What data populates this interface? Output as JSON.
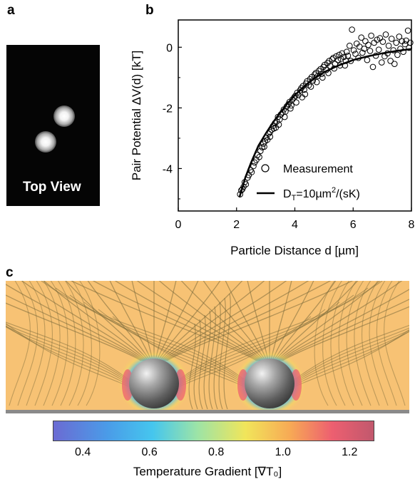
{
  "panels": {
    "a": {
      "letter": "a",
      "label": "Top View"
    },
    "b": {
      "letter": "b"
    },
    "c": {
      "letter": "c"
    }
  },
  "chart_data": {
    "type": "scatter",
    "xlabel": "Particle Distance d [µm]",
    "ylabel": "Pair Potential ΔV(d) [kT]",
    "xlim": [
      0,
      8
    ],
    "ylim": [
      -5.4,
      0.9
    ],
    "x_ticks": [
      "0",
      "2",
      "4",
      "6",
      "8"
    ],
    "y_ticks": [
      "0",
      "-2",
      "-4"
    ],
    "grid": false,
    "legend": {
      "position": "bottom-right",
      "measurement_label": "Measurement",
      "fit_label_main": "D",
      "fit_label_sub": "T",
      "fit_label_mid": "=10µm",
      "fit_label_sup": "2",
      "fit_label_end": "/(sK)"
    },
    "series": [
      {
        "name": "Measurement",
        "style": "open-circles",
        "points": [
          [
            2.12,
            -4.85
          ],
          [
            2.16,
            -4.72
          ],
          [
            2.2,
            -4.68
          ],
          [
            2.24,
            -4.6
          ],
          [
            2.28,
            -4.45
          ],
          [
            2.32,
            -4.52
          ],
          [
            2.38,
            -4.3
          ],
          [
            2.42,
            -4.22
          ],
          [
            2.48,
            -4.05
          ],
          [
            2.52,
            -4.12
          ],
          [
            2.58,
            -3.92
          ],
          [
            2.62,
            -3.8
          ],
          [
            2.68,
            -3.72
          ],
          [
            2.72,
            -3.55
          ],
          [
            2.78,
            -3.62
          ],
          [
            2.82,
            -3.42
          ],
          [
            2.88,
            -3.3
          ],
          [
            2.92,
            -3.18
          ],
          [
            2.98,
            -3.1
          ],
          [
            3.02,
            -2.98
          ],
          [
            3.06,
            -3.05
          ],
          [
            3.1,
            -2.85
          ],
          [
            3.15,
            -2.8
          ],
          [
            3.2,
            -2.72
          ],
          [
            3.25,
            -2.6
          ],
          [
            3.28,
            -2.68
          ],
          [
            3.32,
            -2.5
          ],
          [
            3.38,
            -2.45
          ],
          [
            3.42,
            -2.3
          ],
          [
            3.48,
            -2.38
          ],
          [
            3.52,
            -2.22
          ],
          [
            3.58,
            -2.15
          ],
          [
            3.62,
            -2.05
          ],
          [
            3.68,
            -2.12
          ],
          [
            3.72,
            -1.95
          ],
          [
            3.78,
            -1.88
          ],
          [
            3.82,
            -1.8
          ],
          [
            3.88,
            -1.92
          ],
          [
            3.92,
            -1.72
          ],
          [
            3.98,
            -1.65
          ],
          [
            4.02,
            -1.6
          ],
          [
            4.08,
            -1.5
          ],
          [
            4.12,
            -1.58
          ],
          [
            4.18,
            -1.42
          ],
          [
            4.22,
            -1.35
          ],
          [
            4.28,
            -1.28
          ],
          [
            4.32,
            -1.4
          ],
          [
            4.38,
            -1.2
          ],
          [
            4.42,
            -1.12
          ],
          [
            4.48,
            -1.25
          ],
          [
            4.52,
            -1.05
          ],
          [
            4.58,
            -0.98
          ],
          [
            4.62,
            -1.1
          ],
          [
            4.68,
            -0.9
          ],
          [
            4.72,
            -0.85
          ],
          [
            4.78,
            -0.95
          ],
          [
            4.82,
            -0.78
          ],
          [
            4.88,
            -0.72
          ],
          [
            4.92,
            -0.88
          ],
          [
            4.98,
            -0.65
          ],
          [
            5.02,
            -0.58
          ],
          [
            5.08,
            -0.75
          ],
          [
            5.12,
            -0.52
          ],
          [
            5.18,
            -0.45
          ],
          [
            5.22,
            -0.62
          ],
          [
            5.28,
            -0.4
          ],
          [
            5.32,
            -0.35
          ],
          [
            5.38,
            -0.55
          ],
          [
            5.42,
            -0.3
          ],
          [
            5.48,
            -0.42
          ],
          [
            5.52,
            -0.25
          ],
          [
            5.58,
            -0.38
          ],
          [
            5.62,
            -0.2
          ],
          [
            5.68,
            -0.32
          ],
          [
            5.72,
            -0.6
          ],
          [
            5.78,
            -0.15
          ],
          [
            5.82,
            -0.28
          ],
          [
            5.88,
            0.05
          ],
          [
            5.92,
            -0.45
          ],
          [
            5.96,
            0.58
          ],
          [
            6.02,
            -0.1
          ],
          [
            6.08,
            -0.22
          ],
          [
            6.12,
            0.12
          ],
          [
            6.18,
            -0.35
          ],
          [
            6.22,
            0.02
          ],
          [
            6.28,
            0.32
          ],
          [
            6.32,
            -0.18
          ],
          [
            6.38,
            -0.05
          ],
          [
            6.42,
            0.2
          ],
          [
            6.48,
            -0.42
          ],
          [
            6.52,
            0.08
          ],
          [
            6.58,
            -0.12
          ],
          [
            6.62,
            0.38
          ],
          [
            6.68,
            -0.65
          ],
          [
            6.72,
            0.15
          ],
          [
            6.78,
            -0.28
          ],
          [
            6.82,
            0.25
          ],
          [
            6.88,
            -0.08
          ],
          [
            6.92,
            0.3
          ],
          [
            6.98,
            -0.5
          ],
          [
            7.02,
            0.18
          ],
          [
            7.08,
            -0.3
          ],
          [
            7.12,
            0.42
          ],
          [
            7.18,
            -0.2
          ],
          [
            7.22,
            0.05
          ],
          [
            7.28,
            -0.45
          ],
          [
            7.32,
            0.28
          ],
          [
            7.38,
            -0.1
          ],
          [
            7.42,
            -0.55
          ],
          [
            7.48,
            0.15
          ],
          [
            7.52,
            -0.25
          ],
          [
            7.58,
            0.35
          ],
          [
            7.62,
            -0.05
          ],
          [
            7.68,
            0.2
          ],
          [
            7.72,
            -0.15
          ],
          [
            7.78,
            0.1
          ],
          [
            7.82,
            0.22
          ],
          [
            7.88,
            0.55
          ],
          [
            7.92,
            -0.02
          ],
          [
            7.96,
            0.15
          ],
          [
            4.35,
            -1.55
          ],
          [
            4.55,
            -1.3
          ],
          [
            4.75,
            -1.15
          ],
          [
            4.95,
            -1.0
          ],
          [
            5.15,
            -0.85
          ],
          [
            5.35,
            -0.7
          ],
          [
            5.55,
            -0.6
          ],
          [
            5.75,
            -0.45
          ],
          [
            3.45,
            -2.55
          ],
          [
            3.65,
            -2.3
          ],
          [
            3.85,
            -2.02
          ],
          [
            4.05,
            -1.82
          ],
          [
            4.25,
            -1.65
          ],
          [
            2.95,
            -3.28
          ],
          [
            3.15,
            -2.95
          ],
          [
            3.35,
            -2.65
          ]
        ]
      },
      {
        "name": "fit",
        "style": "line",
        "points": [
          [
            2.1,
            -4.95
          ],
          [
            2.3,
            -4.3
          ],
          [
            2.5,
            -3.8
          ],
          [
            2.75,
            -3.25
          ],
          [
            3.0,
            -2.85
          ],
          [
            3.25,
            -2.48
          ],
          [
            3.5,
            -2.15
          ],
          [
            3.75,
            -1.85
          ],
          [
            4.0,
            -1.58
          ],
          [
            4.25,
            -1.35
          ],
          [
            4.5,
            -1.15
          ],
          [
            4.75,
            -0.98
          ],
          [
            5.0,
            -0.82
          ],
          [
            5.5,
            -0.6
          ],
          [
            6.0,
            -0.42
          ],
          [
            6.5,
            -0.3
          ],
          [
            7.0,
            -0.2
          ],
          [
            7.5,
            -0.12
          ],
          [
            8.0,
            -0.06
          ]
        ]
      }
    ]
  },
  "colorbar": {
    "title": "Temperature Gradient [∇T₀]",
    "ticks": [
      "0.4",
      "0.6",
      "0.8",
      "1.0",
      "1.2"
    ],
    "tick_values": [
      0.4,
      0.6,
      0.8,
      1.0,
      1.2
    ],
    "range": [
      0.31,
      1.27
    ]
  },
  "colors": {
    "simulation_background": "#f7c274",
    "streamline": "#7a6a3a",
    "sphere": "#8a8a8a"
  }
}
